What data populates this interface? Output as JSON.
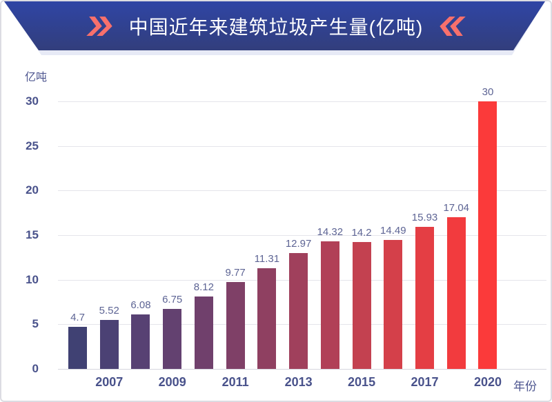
{
  "banner": {
    "title": "中国近年来建筑垃圾产生量(亿吨)",
    "bg_top": "#2f45a5",
    "bg_bottom": "#323e7c",
    "chevron_color": "#f8706c",
    "left_icon": "double-chevron-right-icon",
    "right_icon": "double-chevron-left-icon"
  },
  "axis": {
    "unit_label": "亿吨",
    "x_axis_label": "年份"
  },
  "chart_data": {
    "type": "bar",
    "title": "中国近年来建筑垃圾产生量(亿吨)",
    "ylabel": "亿吨",
    "xlabel": "年份",
    "ylim": [
      0,
      30
    ],
    "y_ticks": [
      0,
      5,
      10,
      15,
      20,
      25,
      30
    ],
    "grid": true,
    "legend": false,
    "values": [
      4.7,
      5.52,
      6.08,
      6.75,
      8.12,
      9.77,
      11.31,
      12.97,
      14.32,
      14.2,
      14.49,
      15.93,
      17.04,
      30
    ],
    "value_labels": [
      "4.7",
      "5.52",
      "6.08",
      "6.75",
      "8.12",
      "9.77",
      "11.31",
      "12.97",
      "14.32",
      "14.2",
      "14.49",
      "15.93",
      "17.04",
      "30"
    ],
    "x_tick_labels": [
      "2007",
      "2009",
      "2011",
      "2013",
      "2015",
      "2017",
      "2020"
    ],
    "x_tick_bar_indexes": [
      1,
      3,
      5,
      7,
      9,
      11,
      13
    ],
    "bar_colors": [
      "#404173",
      "#4b4174",
      "#574173",
      "#634170",
      "#70406c",
      "#7f4067",
      "#8f4061",
      "#a0405c",
      "#b14057",
      "#c34150",
      "#d4404a",
      "#e43e44",
      "#f23b3e",
      "#fb3a3a"
    ],
    "value_label_color": "#5d6494",
    "tick_color": "#49528b",
    "gridline_color": "#e4e4ea"
  }
}
